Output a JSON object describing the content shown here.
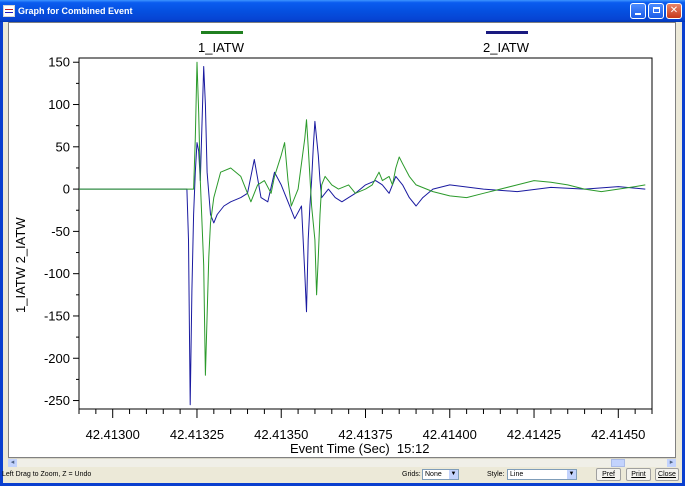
{
  "window": {
    "title": "Graph for Combined Event",
    "icon": "graph-app-icon",
    "buttons": [
      "minimize",
      "maximize",
      "close"
    ]
  },
  "legend": {
    "items": [
      {
        "label": "1_IATW",
        "color": "#208020"
      },
      {
        "label": "2_IATW",
        "color": "#1a1a80"
      }
    ]
  },
  "plot": {
    "ylabel": "1_IATW 2_IATW",
    "xlabel": "Event Time (Sec)  15:12",
    "y_ticks": [
      "150",
      "100",
      "50",
      "0",
      "-50",
      "-100",
      "-150",
      "-200",
      "-250"
    ],
    "x_ticks": [
      "42.41300",
      "42.41325",
      "42.41350",
      "42.41375",
      "42.41400",
      "42.41425",
      "42.41450"
    ]
  },
  "chart_data": {
    "type": "line",
    "title": "",
    "xlabel": "Event Time (Sec)  15:12",
    "ylabel": "1_IATW 2_IATW",
    "xlim": [
      42.4129,
      42.4146
    ],
    "ylim": [
      -260,
      155
    ],
    "grid": false,
    "legend_position": "top",
    "series": [
      {
        "name": "1_IATW",
        "color": "#2b9a2b",
        "x": [
          42.4129,
          42.41324,
          42.413245,
          42.41325,
          42.413255,
          42.41326,
          42.413265,
          42.41327,
          42.413275,
          42.41328,
          42.413285,
          42.41329,
          42.4133,
          42.41332,
          42.41335,
          42.41338,
          42.41341,
          42.41343,
          42.41345,
          42.41347,
          42.41348,
          42.4135,
          42.41351,
          42.41352,
          42.41353,
          42.41355,
          42.41357,
          42.413575,
          42.41358,
          42.41359,
          42.4136,
          42.413605,
          42.41361,
          42.413615,
          42.41362,
          42.413625,
          42.41363,
          42.41364,
          42.41365,
          42.41367,
          42.4137,
          42.41372,
          42.41375,
          42.41377,
          42.41379,
          42.4138,
          42.41382,
          42.41383,
          42.41384,
          42.41385,
          42.41386,
          42.41388,
          42.4139,
          42.41395,
          42.414,
          42.41405,
          42.4141,
          42.41415,
          42.4142,
          42.41425,
          42.4143,
          42.41435,
          42.4144,
          42.41445,
          42.4145,
          42.41455,
          42.41458
        ],
        "y": [
          0,
          0,
          60,
          150,
          90,
          10,
          -40,
          -90,
          -220,
          -150,
          -80,
          -40,
          -10,
          20,
          25,
          15,
          -15,
          5,
          10,
          -5,
          15,
          40,
          55,
          10,
          -20,
          0,
          60,
          82,
          50,
          -20,
          -60,
          -125,
          -80,
          -30,
          5,
          10,
          15,
          10,
          5,
          0,
          5,
          -5,
          0,
          5,
          20,
          10,
          15,
          5,
          25,
          38,
          30,
          15,
          5,
          -3,
          -8,
          -10,
          -5,
          0,
          5,
          10,
          8,
          5,
          0,
          -3,
          0,
          3,
          5
        ]
      },
      {
        "name": "2_IATW",
        "color": "#1a1aa0",
        "x": [
          42.4129,
          42.41322,
          42.413225,
          42.41323,
          42.413235,
          42.41324,
          42.413245,
          42.41325,
          42.413255,
          42.41326,
          42.41327,
          42.413275,
          42.41328,
          42.41329,
          42.4133,
          42.41331,
          42.41333,
          42.41335,
          42.41338,
          42.4134,
          42.41342,
          42.41344,
          42.41346,
          42.41348,
          42.4135,
          42.41352,
          42.41354,
          42.41356,
          42.41357,
          42.413575,
          42.41358,
          42.413585,
          42.41359,
          42.413595,
          42.4136,
          42.41361,
          42.413615,
          42.41362,
          42.41364,
          42.41366,
          42.41368,
          42.4137,
          42.41372,
          42.41375,
          42.41378,
          42.4138,
          42.41382,
          42.41384,
          42.41386,
          42.41388,
          42.4139,
          42.41392,
          42.41395,
          42.414,
          42.4141,
          42.4142,
          42.4143,
          42.4144,
          42.4145,
          42.41458
        ],
        "y": [
          0,
          0,
          -60,
          -255,
          -120,
          -30,
          20,
          55,
          45,
          10,
          145,
          100,
          20,
          -30,
          -40,
          -30,
          -20,
          -15,
          -10,
          -5,
          35,
          -10,
          -15,
          20,
          5,
          -15,
          -35,
          -20,
          -100,
          -145,
          -60,
          -20,
          10,
          50,
          80,
          40,
          10,
          -10,
          0,
          -10,
          -15,
          -10,
          -5,
          5,
          10,
          5,
          -5,
          15,
          5,
          -10,
          -20,
          -10,
          0,
          5,
          0,
          -3,
          2,
          0,
          3,
          0
        ]
      }
    ]
  },
  "scrollbar": {
    "left_arrow": "◂",
    "right_arrow": "▸"
  },
  "status": {
    "message": "Left Drag to Zoom, Z = Undo",
    "grids_label": "Grids:",
    "grids_value": "None",
    "style_label": "Style:",
    "style_value": "Line",
    "pref_button": "Pref",
    "print_button": "Print",
    "close_button": "Close"
  }
}
